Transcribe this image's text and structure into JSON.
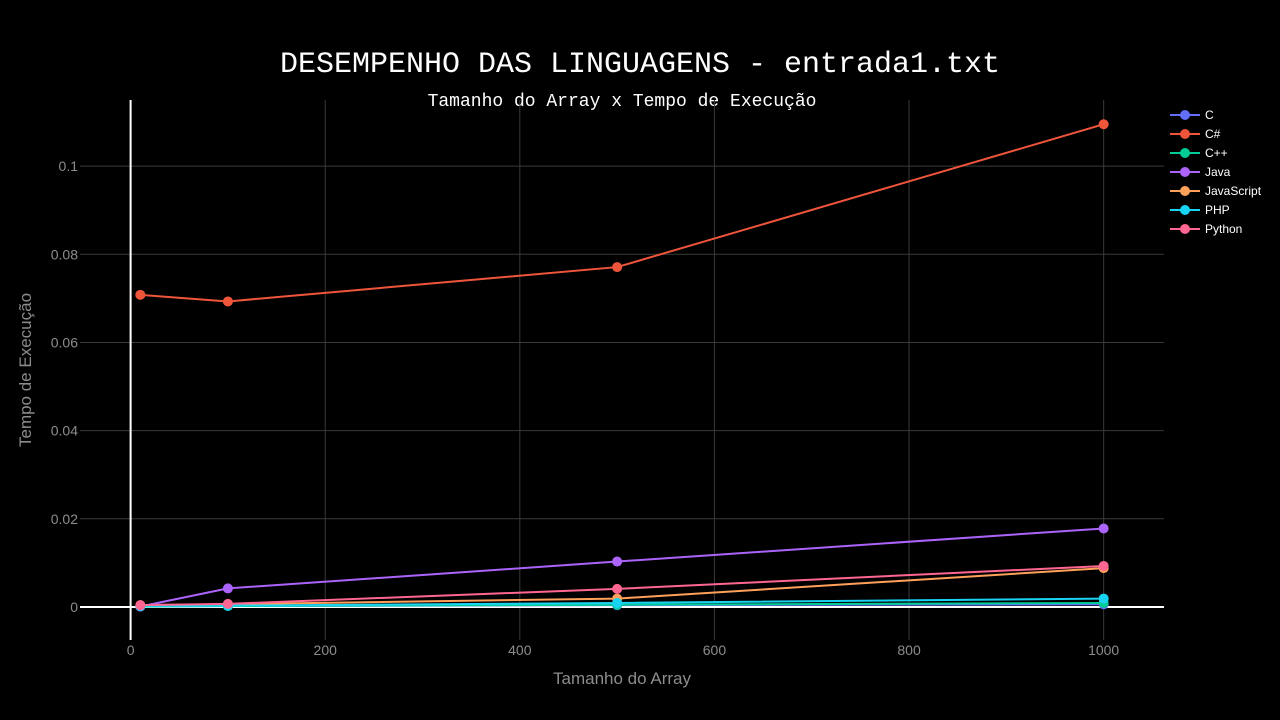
{
  "chart_data": {
    "type": "line",
    "title": "DESEMPENHO DAS LINGUAGENS - entrada1.txt",
    "subtitle": "Tamanho do Array x Tempo de Execução",
    "xlabel": "Tamanho do Array",
    "ylabel": "Tempo de Execução",
    "x": [
      10,
      100,
      500,
      1000
    ],
    "xlim": [
      -52,
      1062
    ],
    "ylim": [
      -0.0075,
      0.115
    ],
    "xticks": [
      0,
      200,
      400,
      600,
      800,
      1000
    ],
    "xtick_labels": [
      "0",
      "200",
      "400",
      "600",
      "800",
      "1000"
    ],
    "yticks": [
      0,
      0.02,
      0.04,
      0.06,
      0.08,
      0.1
    ],
    "ytick_labels": [
      "0",
      "0.02",
      "0.04",
      "0.06",
      "0.08",
      "0.1"
    ],
    "grid": true,
    "legend_position": "top-right",
    "series": [
      {
        "name": "C",
        "color": "#636efa",
        "values": [
          0.0001,
          0.0002,
          0.0004,
          0.0006
        ]
      },
      {
        "name": "C#",
        "color": "#ef553b",
        "values": [
          0.0708,
          0.0693,
          0.0771,
          0.1095
        ]
      },
      {
        "name": "C++",
        "color": "#00cc96",
        "values": [
          0.0001,
          0.0002,
          0.0005,
          0.0009
        ]
      },
      {
        "name": "Java",
        "color": "#ab63fa",
        "values": [
          0.0001,
          0.0042,
          0.0103,
          0.0178
        ]
      },
      {
        "name": "JavaScript",
        "color": "#ffa15a",
        "values": [
          0.0004,
          0.0006,
          0.0019,
          0.0088
        ]
      },
      {
        "name": "PHP",
        "color": "#19d3f3",
        "values": [
          0.0002,
          0.0003,
          0.0009,
          0.0019
        ]
      },
      {
        "name": "Python",
        "color": "#ff6692",
        "values": [
          0.0004,
          0.0007,
          0.0041,
          0.0093
        ]
      }
    ]
  }
}
